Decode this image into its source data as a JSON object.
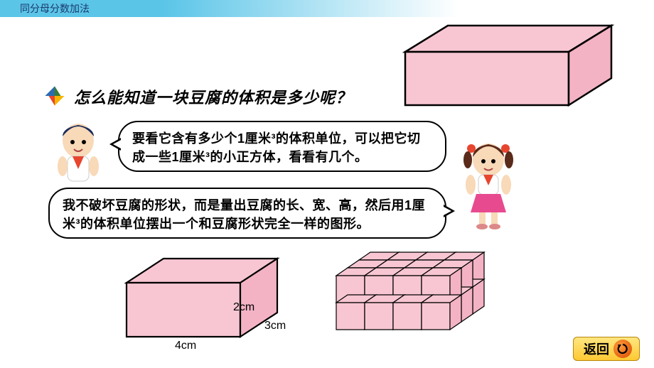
{
  "header": {
    "title": "同分母分数加法"
  },
  "question": "怎么能知道一块豆腐的体积是多少呢？",
  "bubbles": {
    "boy": "要看它含有多少个1厘米³的体积单位，可以把它切成一些1厘米³的小正方体，看看有几个。",
    "girl": "我不破坏豆腐的形状，而是量出豆腐的长、宽、高，然后用1厘米³的体积单位摆出一个和豆腐形状完全一样的图形。"
  },
  "tofu": {
    "top_box": {
      "fill": "#f8c6d3",
      "stroke": "#000000",
      "stroke_width": 2
    },
    "labeled_box": {
      "fill": "#f8c6d3",
      "stroke": "#000000",
      "stroke_width": 2,
      "length_cm": 4,
      "width_cm": 3,
      "height_cm": 2,
      "length_label": "4cm",
      "width_label": "3cm",
      "height_label": "2cm"
    },
    "unit_cubes": {
      "fill": "#f8c6d3",
      "stroke": "#000000",
      "stroke_width": 1.2,
      "cols": 4,
      "rows": 3,
      "layers": 2
    }
  },
  "bullet_colors": {
    "top": "#3a7d2f",
    "right": "#f7b500",
    "bottom": "#e8452f",
    "left": "#2b6cb0"
  },
  "characters": {
    "boy": {
      "hair": "#1a2a5c",
      "skin": "#f8d9b8",
      "shirt": "#ffffff",
      "scarf": "#e8452f"
    },
    "girl": {
      "hair": "#5a2a1a",
      "skin": "#f8d9b8",
      "shirt": "#ffffff",
      "scarf": "#e8452f",
      "bows": "#e8452f",
      "skirt": "#e84a8f"
    }
  },
  "back_button": {
    "label": "返回",
    "bg": "#ffc933",
    "icon_bg": "#e86a1c"
  }
}
